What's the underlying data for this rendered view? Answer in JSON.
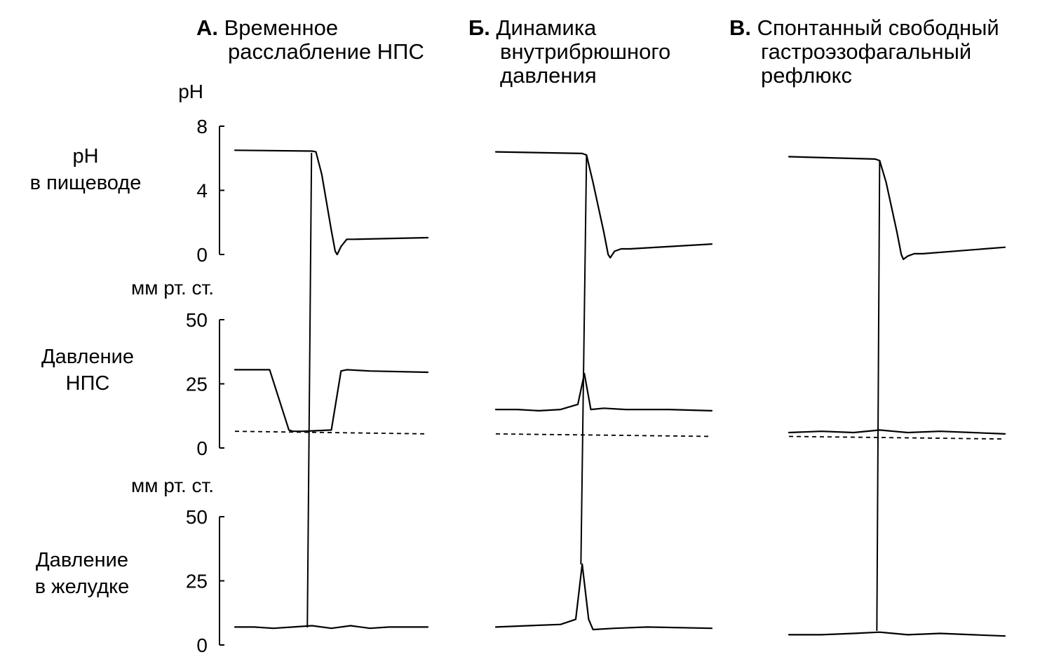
{
  "chart_data": {
    "type": "line",
    "panels": [
      {
        "letter": "А.",
        "title_lines": [
          "Временное",
          "расслабление НПС"
        ]
      },
      {
        "letter": "Б.",
        "title_lines": [
          "Динамика",
          "внутрибрюшного",
          "давления"
        ]
      },
      {
        "letter": "В.",
        "title_lines": [
          "Спонтанный свободный",
          "гастроэзофагальный",
          "рефлюкс"
        ]
      }
    ],
    "rows": [
      {
        "label_lines": [
          "pH",
          "в пищеводе"
        ],
        "unit": "pH",
        "ylim": [
          0,
          8
        ],
        "ticks": [
          "0",
          "4",
          "8"
        ],
        "tick_values": [
          0,
          4,
          8
        ],
        "series": [
          {
            "t": [
              0,
              40,
              42,
              45,
              50,
              52,
              53,
              55,
              58,
              62,
              100
            ],
            "v": [
              6.5,
              6.45,
              6.4,
              5.0,
              1.5,
              0.2,
              0.0,
              0.5,
              0.95,
              0.95,
              1.05
            ]
          },
          {
            "t": [
              0,
              40,
              42,
              45,
              50,
              52,
              53,
              55,
              58,
              62,
              100
            ],
            "v": [
              6.4,
              6.3,
              6.2,
              4.5,
              1.4,
              0.0,
              -0.2,
              0.2,
              0.35,
              0.35,
              0.65
            ]
          },
          {
            "t": [
              0,
              40,
              42,
              45,
              50,
              52,
              53,
              55,
              58,
              62,
              100
            ],
            "v": [
              6.1,
              5.95,
              5.85,
              4.5,
              1.4,
              0.0,
              -0.3,
              -0.1,
              0.05,
              0.05,
              0.45
            ]
          }
        ]
      },
      {
        "label_lines": [
          "Давление",
          "НПС"
        ],
        "unit": "мм рт. ст.",
        "ylim": [
          0,
          50
        ],
        "ticks": [
          "0",
          "25",
          "50"
        ],
        "tick_values": [
          0,
          25,
          50
        ],
        "series": [
          {
            "t": [
              0,
              18,
              28,
              30,
              35,
              50,
              55,
              58,
              70,
              100
            ],
            "v": [
              30.5,
              30.5,
              7,
              6.5,
              6.5,
              7,
              30,
              30.5,
              30,
              29.5
            ]
          },
          {
            "t": [
              0,
              10,
              20,
              30,
              38,
              41,
              44,
              50,
              60,
              70,
              80,
              100
            ],
            "v": [
              15,
              15,
              14.5,
              15,
              17,
              29,
              15,
              15.5,
              15,
              15,
              15,
              14.5
            ]
          },
          {
            "t": [
              0,
              15,
              30,
              42,
              55,
              70,
              85,
              100
            ],
            "v": [
              6,
              6.5,
              6,
              7,
              6,
              6.5,
              6,
              5.5
            ]
          }
        ],
        "baseline": [
          {
            "t": [
              0,
              100
            ],
            "v": [
              6.5,
              5.5
            ]
          },
          {
            "t": [
              0,
              100
            ],
            "v": [
              5.5,
              4.5
            ]
          },
          {
            "t": [
              0,
              100
            ],
            "v": [
              4.5,
              3.5
            ]
          }
        ]
      },
      {
        "label_lines": [
          "Давление",
          "в желудке"
        ],
        "unit": "мм рт. ст.",
        "ylim": [
          0,
          50
        ],
        "ticks": [
          "0",
          "25",
          "50"
        ],
        "tick_values": [
          0,
          25,
          50
        ],
        "series": [
          {
            "t": [
              0,
              10,
              20,
              30,
              40,
              50,
              60,
              70,
              80,
              100
            ],
            "v": [
              7,
              7,
              6.5,
              7,
              7.5,
              6.5,
              7.5,
              6.5,
              7,
              7
            ]
          },
          {
            "t": [
              0,
              15,
              30,
              37,
              40,
              43,
              45,
              55,
              70,
              100
            ],
            "v": [
              7,
              7.5,
              8,
              10,
              31.5,
              10,
              6,
              6.5,
              7,
              6.5
            ]
          },
          {
            "t": [
              0,
              15,
              30,
              42,
              55,
              70,
              85,
              100
            ],
            "v": [
              4,
              4,
              4.5,
              5,
              4,
              4.5,
              4,
              3.5
            ]
          }
        ]
      }
    ],
    "event_t": [
      39,
      42,
      42
    ]
  }
}
